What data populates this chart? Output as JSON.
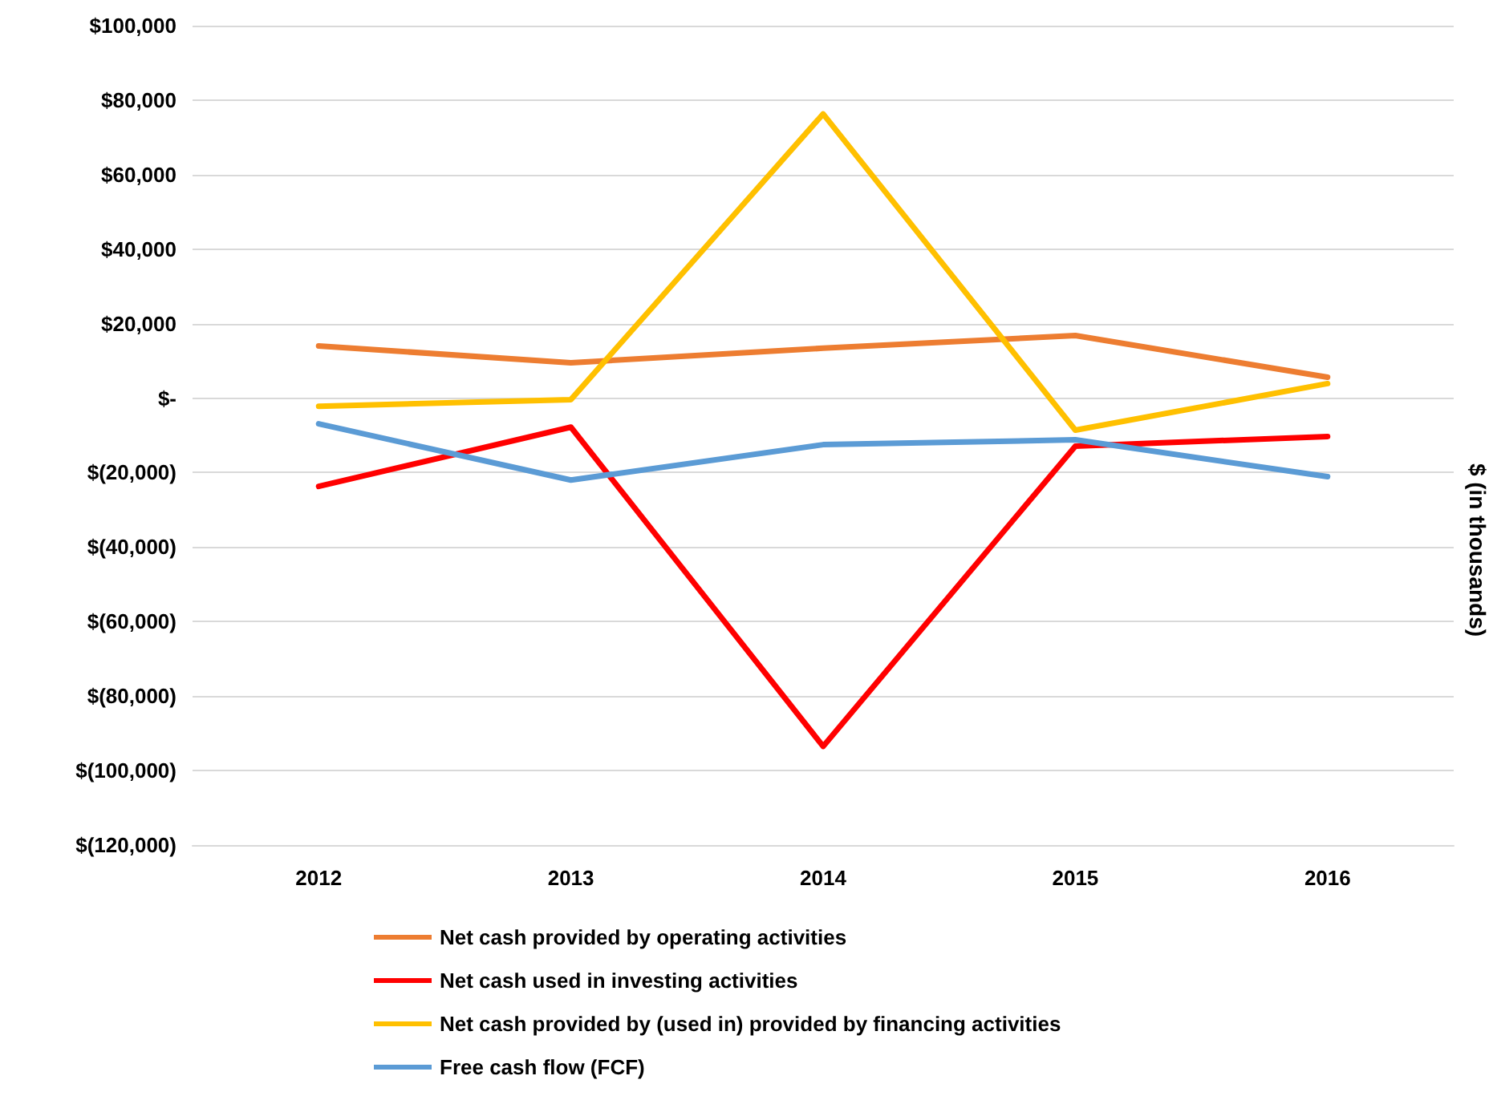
{
  "chart_data": {
    "type": "line",
    "ylabel": "$ (in thousands)",
    "categories": [
      "2012",
      "2013",
      "2014",
      "2015",
      "2016"
    ],
    "series": [
      {
        "name": "Net cash provided by operating activities",
        "color": "#ed7d31",
        "values": [
          14000,
          9500,
          13400,
          16800,
          5600
        ]
      },
      {
        "name": "Net cash used in investing activities",
        "color": "#ff0000",
        "values": [
          -23700,
          -7800,
          -93500,
          -12900,
          -10300
        ]
      },
      {
        "name": "Net cash provided by (used in) provided by financing activities",
        "color": "#ffc000",
        "values": [
          -2200,
          -400,
          76300,
          -8600,
          3900
        ]
      },
      {
        "name": "Free cash flow (FCF)",
        "color": "#5b9bd5",
        "values": [
          -6900,
          -22000,
          -12500,
          -11200,
          -21100
        ]
      }
    ],
    "ylim": [
      -120000,
      100000
    ],
    "yticks": [
      {
        "value": -120000,
        "label": "$(120,000)"
      },
      {
        "value": -100000,
        "label": "$(100,000)"
      },
      {
        "value": -80000,
        "label": "$(80,000)"
      },
      {
        "value": -60000,
        "label": "$(60,000)"
      },
      {
        "value": -40000,
        "label": "$(40,000)"
      },
      {
        "value": -20000,
        "label": "$(20,000)"
      },
      {
        "value": 0,
        "label": "$-"
      },
      {
        "value": 20000,
        "label": "$20,000"
      },
      {
        "value": 40000,
        "label": "$40,000"
      },
      {
        "value": 60000,
        "label": "$60,000"
      },
      {
        "value": 80000,
        "label": "$80,000"
      },
      {
        "value": 100000,
        "label": "$100,000"
      }
    ],
    "grid": "y",
    "legend": "bottom",
    "marker": "none",
    "line_style": "solid"
  }
}
